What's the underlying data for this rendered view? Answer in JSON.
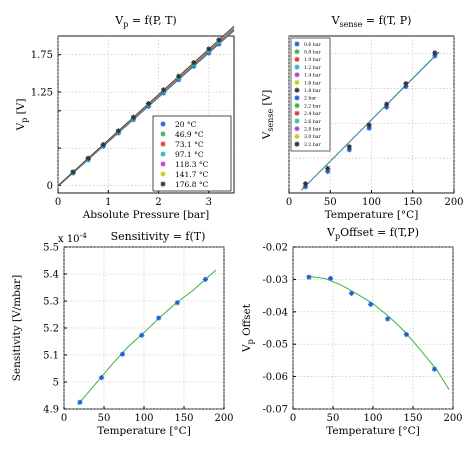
{
  "chart_data": [
    {
      "type": "line",
      "title": "V_p = f(P, T)",
      "title_main": "V",
      "title_sub": "p",
      "title_rest": " = f(P, T)",
      "xlabel": "Absolute Pressure [bar]",
      "ylabel": "V_p [V]",
      "ylabel_main": "V",
      "ylabel_sub": "p",
      "ylabel_rest": " [V]",
      "xlim": [
        0,
        3.5
      ],
      "ylim": [
        -0.1,
        2.0
      ],
      "xticks": [
        0,
        1,
        2,
        3
      ],
      "yticks": [
        0,
        0.5,
        1,
        1.25,
        1.75
      ],
      "ytick_labels": [
        "0",
        "",
        "",
        "",
        ""
      ],
      "ytick_show": [
        "0",
        "1.25",
        "1.75"
      ],
      "legend_position": "lower-right",
      "grid": true,
      "x": [
        0.3,
        0.6,
        0.9,
        1.2,
        1.5,
        1.8,
        2.1,
        2.4,
        2.7,
        3.0,
        3.2
      ],
      "series": [
        {
          "name": "20 °C",
          "color": "#1f5bd6",
          "slope": 0.595,
          "intercept": -0.012
        },
        {
          "name": "46.9 °C",
          "color": "#39b339",
          "slope": 0.597,
          "intercept": -0.01
        },
        {
          "name": "73.1 °C",
          "color": "#e03a3a",
          "slope": 0.599,
          "intercept": -0.008
        },
        {
          "name": "97.1 °C",
          "color": "#2bb5b5",
          "slope": 0.601,
          "intercept": -0.006
        },
        {
          "name": "118.3 °C",
          "color": "#b23bd6",
          "slope": 0.603,
          "intercept": -0.004
        },
        {
          "name": "141.7 °C",
          "color": "#c8c81e",
          "slope": 0.606,
          "intercept": -0.002
        },
        {
          "name": "176.8 °C",
          "color": "#333333",
          "slope": 0.609,
          "intercept": 0.0
        }
      ]
    },
    {
      "type": "line",
      "title": "V_sense = f(T, P)",
      "title_main": "V",
      "title_sub": "sense",
      "title_rest": " = f(T, P)",
      "xlabel": "Temperature [°C]",
      "ylabel": "V_sense [V]",
      "ylabel_main": "V",
      "ylabel_sub": "sense",
      "ylabel_rest": " [V]",
      "xlim": [
        0,
        200
      ],
      "ylim": [
        0,
        450
      ],
      "xticks": [
        0,
        50,
        100,
        150,
        200
      ],
      "xtick_labels": [
        "0",
        "50",
        "100",
        "150",
        "200"
      ],
      "legend_position": "top-left",
      "grid": true,
      "x": [
        20,
        46.9,
        73.1,
        97.1,
        118.3,
        141.7,
        176.8
      ],
      "points": [
        18,
        62,
        124,
        186,
        246,
        305,
        393
      ],
      "legend": [
        "0.6 bar",
        "0.8 bar",
        "1.0 bar",
        "1.2 bar",
        "1.4 bar",
        "1.6 bar",
        "1.8 bar",
        "2 bar",
        "2.2 bar",
        "2.4 bar",
        "2.6 bar",
        "2.8 bar",
        "3.0 bar",
        "3.2 bar"
      ],
      "legend_colors": [
        "#1f5bd6",
        "#39b339",
        "#e03a3a",
        "#2bb5b5",
        "#b23bd6",
        "#c8c81e",
        "#333333",
        "#1f5bd6",
        "#39b339",
        "#e03a3a",
        "#2bb5b5",
        "#b23bd6",
        "#c8c81e",
        "#333333"
      ]
    },
    {
      "type": "line",
      "title": "Sensitivity = f(T)",
      "xlabel": "Temperature [°C]",
      "ylabel": "Sensitivity [V/mbar]",
      "exponent_label": "x 10",
      "exponent": "-4",
      "xlim": [
        0,
        200
      ],
      "ylim": [
        4.9,
        5.5
      ],
      "xticks": [
        0,
        50,
        100,
        150,
        200
      ],
      "yticks": [
        4.9,
        5.0,
        5.1,
        5.2,
        5.3,
        5.4,
        5.5
      ],
      "ytick_labels": [
        "4.9",
        "5",
        "5.1",
        "5.2",
        "5.3",
        "5.4",
        "5.5"
      ],
      "grid": true,
      "x": [
        20,
        46.9,
        73.1,
        97.1,
        118.3,
        141.7,
        176.8
      ],
      "y": [
        4.925,
        5.016,
        5.103,
        5.173,
        5.237,
        5.294,
        5.38
      ],
      "fit_x": [
        17,
        40,
        60,
        80,
        100,
        120,
        140,
        160,
        190
      ],
      "fit_y": [
        4.915,
        4.995,
        5.065,
        5.13,
        5.183,
        5.24,
        5.292,
        5.336,
        5.415
      ],
      "marker_color": "#1f5bd6",
      "fit_color": "#39b339"
    },
    {
      "type": "line",
      "title": "V_p Offset = f(T,P)",
      "title_main": "V",
      "title_sub": "p",
      "title_rest": "Offset = f(T,P)",
      "xlabel": "Temperature [°C]",
      "ylabel": "V_p Offset",
      "ylabel_main": "V",
      "ylabel_sub": "p",
      "ylabel_rest": " Offset",
      "xlim": [
        0,
        200
      ],
      "ylim": [
        -0.07,
        -0.02
      ],
      "xticks": [
        0,
        50,
        100,
        150,
        200
      ],
      "yticks": [
        -0.07,
        -0.06,
        -0.05,
        -0.04,
        -0.03,
        -0.02
      ],
      "ytick_labels": [
        "-0.07",
        "-0.06",
        "-0.05",
        "-0.04",
        "-0.03",
        "-0.02"
      ],
      "grid": true,
      "x": [
        20,
        46.9,
        73.1,
        97.1,
        118.3,
        141.7,
        176.8
      ],
      "y": [
        -0.0293,
        -0.0297,
        -0.0343,
        -0.0377,
        -0.0422,
        -0.047,
        -0.0577
      ],
      "fit_x": [
        17,
        40,
        60,
        80,
        100,
        120,
        140,
        160,
        180,
        195
      ],
      "fit_y": [
        -0.029,
        -0.0297,
        -0.0317,
        -0.0345,
        -0.0375,
        -0.0415,
        -0.0462,
        -0.052,
        -0.058,
        -0.064
      ],
      "marker_color": "#1f5bd6",
      "fit_color": "#39b339"
    }
  ]
}
